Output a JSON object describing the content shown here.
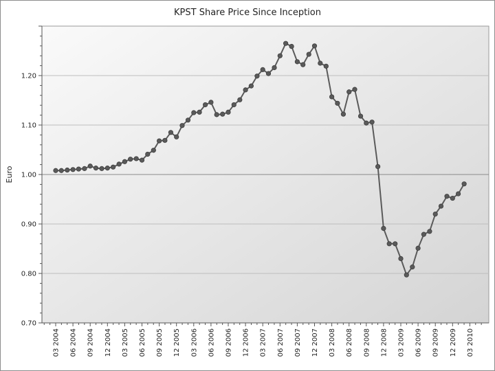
{
  "chart_data": {
    "type": "line",
    "title": "KPST Share Price Since Inception",
    "xlabel": "",
    "ylabel": "Euro",
    "ylim": [
      0.7,
      1.3
    ],
    "y_ticks": [
      "0.70",
      "0.80",
      "0.90",
      "1.00",
      "1.10",
      "1.20"
    ],
    "y_tick_values": [
      0.7,
      0.8,
      0.9,
      1.0,
      1.1,
      1.2
    ],
    "reference_line": 1.0,
    "grid": true,
    "x_tick_labels": [
      "03 2004",
      "06 2004",
      "09 2004",
      "12 2004",
      "03 2005",
      "06 2005",
      "09 2005",
      "12 2005",
      "03 2006",
      "06 2006",
      "09 2006",
      "12 2006",
      "03 2007",
      "06 2007",
      "09 2007",
      "12 2007",
      "03 2008",
      "06 2008",
      "09 2008",
      "12 2008",
      "03 2009",
      "06 2009",
      "09 2009",
      "12 2009",
      "03 2010"
    ],
    "series": [
      {
        "color": "#5a5a5a",
        "x": [
          0.0,
          0.33,
          0.67,
          1.0,
          1.33,
          1.67,
          2.0,
          2.33,
          2.67,
          3.0,
          3.33,
          3.67,
          4.0,
          4.33,
          4.67,
          5.0,
          5.33,
          5.67,
          6.0,
          6.33,
          6.67,
          7.0,
          7.33,
          7.67,
          8.0,
          8.33,
          8.67,
          9.0,
          9.33,
          9.67,
          10.0,
          10.33,
          10.67,
          11.0,
          11.33,
          11.67,
          12.0,
          12.33,
          12.67,
          13.0,
          13.33,
          13.67,
          14.0,
          14.33,
          14.67,
          15.0,
          15.33,
          15.67,
          16.0,
          16.33,
          16.67,
          17.0,
          17.33,
          17.67,
          18.0,
          18.33,
          18.67,
          19.0,
          19.33,
          19.67,
          20.0,
          20.33,
          20.67,
          21.0,
          21.33,
          21.67,
          22.0,
          22.33,
          22.67,
          23.0,
          23.33,
          23.67
        ],
        "y": [
          1.008,
          1.008,
          1.009,
          1.01,
          1.011,
          1.012,
          1.017,
          1.013,
          1.012,
          1.013,
          1.015,
          1.021,
          1.026,
          1.031,
          1.032,
          1.029,
          1.041,
          1.049,
          1.068,
          1.069,
          1.085,
          1.076,
          1.099,
          1.11,
          1.125,
          1.126,
          1.141,
          1.146,
          1.121,
          1.122,
          1.126,
          1.141,
          1.151,
          1.171,
          1.179,
          1.199,
          1.212,
          1.204,
          1.216,
          1.24,
          1.265,
          1.259,
          1.228,
          1.222,
          1.243,
          1.26,
          1.225,
          1.219,
          1.157,
          1.144,
          1.122,
          1.167,
          1.172,
          1.118,
          1.104,
          1.106,
          1.016,
          0.891,
          0.86,
          0.86,
          0.83,
          0.797,
          0.813,
          0.851,
          0.879,
          0.885,
          0.92,
          0.936,
          0.956,
          0.952,
          0.961,
          0.981
        ]
      }
    ]
  }
}
